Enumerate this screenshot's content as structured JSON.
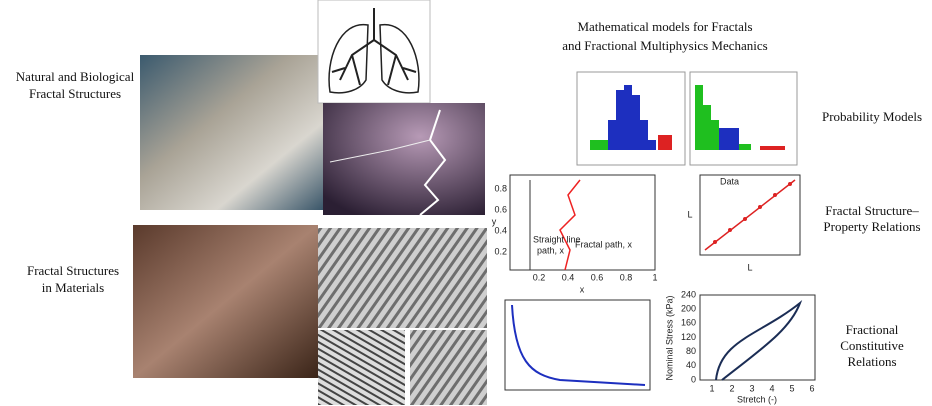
{
  "title": [
    "Mathematical models for Fractals",
    "and Fractional Multiphysics Mechanics"
  ],
  "left_labels": [
    [
      "Natural and Biological",
      "Fractal Structures"
    ],
    [
      "Fractal Structures",
      "in Materials"
    ]
  ],
  "right_labels": [
    [
      "Probability Models"
    ],
    [
      "Fractal Structure–",
      "Property Relations"
    ],
    [
      "Fractional",
      "Constitutive",
      "Relations"
    ]
  ],
  "path_plot": {
    "x_label": "x",
    "y_label": "y",
    "xticks": [
      0.2,
      0.4,
      0.6,
      0.8,
      1
    ],
    "yticks": [
      0.2,
      0.4,
      0.6,
      0.8
    ],
    "labels": [
      "Straight line",
      "path, x",
      "Fractal path, x"
    ]
  },
  "scaling_plot": {
    "x_label": "L",
    "y_label": "L",
    "legend": [
      "Data"
    ]
  },
  "stress_plot": {
    "y_label": "Nominal Stress (kPa)",
    "x_label": "Stretch (-)",
    "yticks": [
      240,
      200,
      160,
      120,
      80,
      40,
      0
    ],
    "xticks": [
      1,
      2,
      3,
      4,
      5,
      6
    ]
  }
}
